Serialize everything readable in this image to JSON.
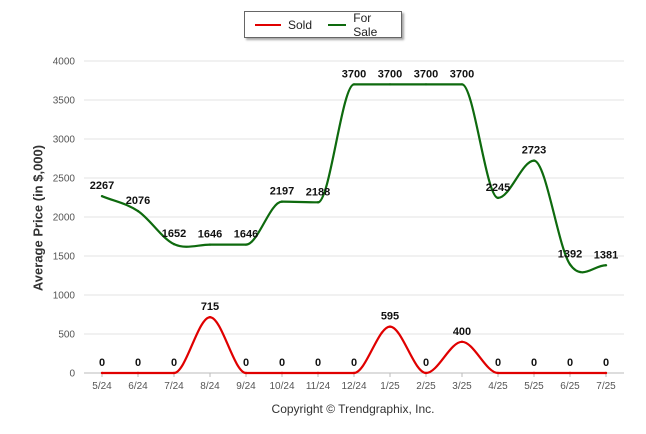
{
  "legend": {
    "items": [
      {
        "label": "Sold",
        "color": "#e00000"
      },
      {
        "label": "For Sale",
        "color": "#0e6a0e"
      }
    ]
  },
  "copyright": "Copyright © Trendgraphix, Inc.",
  "chart_data": {
    "type": "line",
    "title": "",
    "xlabel": "",
    "ylabel": "Average Price (in $,000)",
    "ylim": [
      0,
      4000
    ],
    "yticks": [
      0,
      500,
      1000,
      1500,
      2000,
      2500,
      3000,
      3500,
      4000
    ],
    "categories": [
      "5/24",
      "6/24",
      "7/24",
      "8/24",
      "9/24",
      "10/24",
      "11/24",
      "12/24",
      "1/25",
      "2/25",
      "3/25",
      "4/25",
      "5/25",
      "6/25",
      "7/25"
    ],
    "grid": true,
    "legend_position": "top-center",
    "series": [
      {
        "name": "Sold",
        "color": "#e00000",
        "values": [
          0,
          0,
          0,
          715,
          0,
          0,
          0,
          0,
          595,
          0,
          400,
          0,
          0,
          0,
          0
        ]
      },
      {
        "name": "For Sale",
        "color": "#0e6a0e",
        "values": [
          2267,
          2076,
          1652,
          1646,
          1646,
          2197,
          2188,
          3700,
          3700,
          3700,
          3700,
          2245,
          2723,
          1392,
          1381
        ]
      }
    ]
  }
}
